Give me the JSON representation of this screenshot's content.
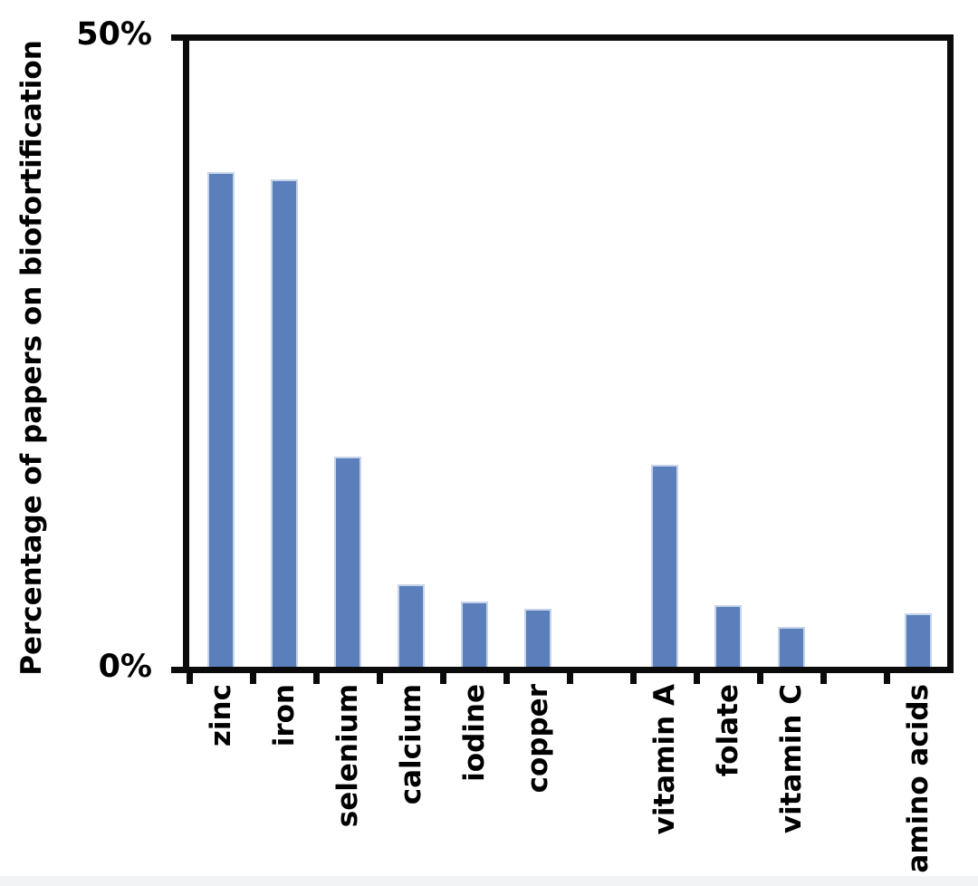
{
  "chart_data": {
    "type": "bar",
    "title": "",
    "ylabel": "Percentage of papers on biofortification",
    "xlabel": "",
    "ylim": [
      0,
      50
    ],
    "yticks": [
      {
        "value": 0,
        "label": "0%"
      },
      {
        "value": 50,
        "label": "50%"
      }
    ],
    "grid": false,
    "legend": null,
    "num_slots": 12,
    "categories": [
      "zinc",
      "iron",
      "selenium",
      "calcium",
      "iodine",
      "copper",
      "vitamin A",
      "folate",
      "vitamin C",
      "amino acids"
    ],
    "values": [
      39.5,
      38.9,
      16.8,
      6.6,
      5.2,
      4.6,
      16.1,
      4.9,
      3.2,
      4.3
    ],
    "slots": [
      0,
      1,
      2,
      3,
      4,
      5,
      7,
      8,
      9,
      11
    ],
    "group_gaps_after": [
      "copper",
      "vitamin C"
    ],
    "colors": {
      "bar_fill": "#5A7FBA",
      "bar_border": "#C7D3E8",
      "axis": "#0b0b0b",
      "text": "#000000",
      "background": "#FFFFFF",
      "bottom_strip": "#F2F3F4"
    }
  }
}
